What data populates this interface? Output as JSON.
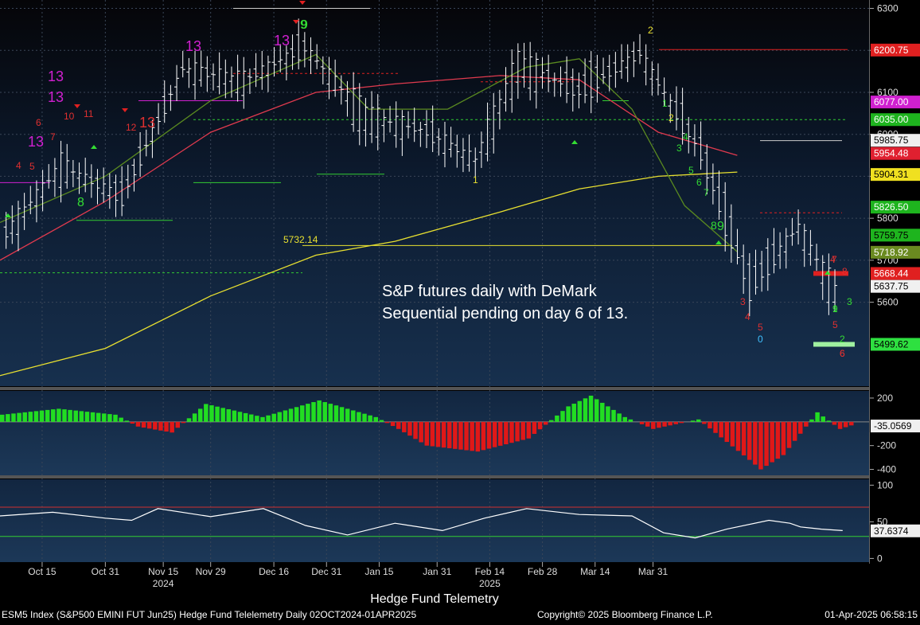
{
  "chart_data": {
    "type": "candlestick",
    "panels": {
      "price": {
        "ylim": [
          5400,
          6320
        ],
        "ticks": [
          {
            "value": 6300,
            "label": "6300"
          },
          {
            "value": 6200,
            "label": "6200"
          },
          {
            "value": 6100,
            "label": "6100"
          },
          {
            "value": 6000,
            "label": "6000"
          },
          {
            "value": 5900,
            "label": "5900"
          },
          {
            "value": 5800,
            "label": "5800"
          },
          {
            "value": 5700,
            "label": "5700"
          },
          {
            "value": 5600,
            "label": "5600"
          }
        ],
        "ohlc_sample": [
          {
            "x": 1,
            "o": 5755,
            "h": 5780,
            "l": 5740,
            "c": 5770
          },
          {
            "x": 10,
            "o": 5900,
            "h": 5950,
            "l": 5880,
            "c": 5940
          },
          {
            "x": 20,
            "o": 5870,
            "h": 5920,
            "l": 5830,
            "c": 5840
          },
          {
            "x": 30,
            "o": 6150,
            "h": 6185,
            "l": 6120,
            "c": 6160
          },
          {
            "x": 40,
            "o": 6110,
            "h": 6160,
            "l": 6080,
            "c": 6140
          },
          {
            "x": 50,
            "o": 6220,
            "h": 6240,
            "l": 6190,
            "c": 6200
          },
          {
            "x": 60,
            "o": 6000,
            "h": 6080,
            "l": 5950,
            "c": 6070
          },
          {
            "x": 70,
            "o": 6020,
            "h": 6060,
            "l": 5980,
            "c": 6000
          },
          {
            "x": 78,
            "o": 5920,
            "h": 5980,
            "l": 5860,
            "c": 5950
          },
          {
            "x": 85,
            "o": 6120,
            "h": 6220,
            "l": 6060,
            "c": 6200
          },
          {
            "x": 95,
            "o": 6140,
            "h": 6180,
            "l": 6060,
            "c": 6080
          },
          {
            "x": 105,
            "o": 6180,
            "h": 6220,
            "l": 6150,
            "c": 6200
          },
          {
            "x": 115,
            "o": 5990,
            "h": 6030,
            "l": 5920,
            "c": 5940
          },
          {
            "x": 123,
            "o": 5680,
            "h": 5800,
            "l": 5570,
            "c": 5610
          },
          {
            "x": 131,
            "o": 5760,
            "h": 5820,
            "l": 5710,
            "c": 5790
          },
          {
            "x": 137,
            "o": 5600,
            "h": 5690,
            "l": 5530,
            "c": 5640
          }
        ],
        "series": [
          {
            "name": "",
            "color": "#e8e030",
            "values": [
              [
                0,
                5425
              ],
              [
                20,
                5490
              ],
              [
                40,
                5615
              ],
              [
                60,
                5712
              ],
              [
                75,
                5745
              ],
              [
                95,
                5815
              ],
              [
                110,
                5870
              ],
              [
                125,
                5900
              ],
              [
                140,
                5910
              ]
            ]
          },
          {
            "name": "",
            "color": "#e03a4e",
            "values": [
              [
                0,
                5700
              ],
              [
                20,
                5840
              ],
              [
                40,
                6005
              ],
              [
                60,
                6100
              ],
              [
                75,
                6120
              ],
              [
                95,
                6140
              ],
              [
                110,
                6130
              ],
              [
                125,
                6005
              ],
              [
                140,
                5950
              ]
            ]
          },
          {
            "name": "",
            "color": "#5a8a20",
            "values": [
              [
                0,
                5790
              ],
              [
                20,
                5900
              ],
              [
                40,
                6080
              ],
              [
                60,
                6190
              ],
              [
                70,
                6060
              ],
              [
                85,
                6060
              ],
              [
                100,
                6160
              ],
              [
                110,
                6180
              ],
              [
                120,
                6060
              ],
              [
                130,
                5830
              ],
              [
                140,
                5720
              ]
            ]
          }
        ],
        "price_labels": [
          {
            "label": "6200.75",
            "value": 6200.75,
            "bg": "#e02020",
            "fg": "#ffffff"
          },
          {
            "label": "6077.00",
            "value": 6077.0,
            "bg": "#d020d0",
            "fg": "#ffffff"
          },
          {
            "label": "6035.00",
            "value": 6035.0,
            "bg": "#1eb41e",
            "fg": "#ffffff"
          },
          {
            "label": "5985.75",
            "value": 5985.75,
            "bg": "#f0f0f0",
            "fg": "#000000"
          },
          {
            "label": "5954.48",
            "value": 5954.48,
            "bg": "#e02030",
            "fg": "#ffffff"
          },
          {
            "label": "5904.31",
            "value": 5904.31,
            "bg": "#f0e020",
            "fg": "#000000"
          },
          {
            "label": "5826.50",
            "value": 5826.5,
            "bg": "#1eb41e",
            "fg": "#ffffff"
          },
          {
            "label": "5759.75",
            "value": 5759.75,
            "bg": "#1eb41e",
            "fg": "#000000"
          },
          {
            "label": "5718.92",
            "value": 5718.92,
            "bg": "#6a8a20",
            "fg": "#ffffff"
          },
          {
            "label": "5668.44",
            "value": 5668.44,
            "bg": "#e02020",
            "fg": "#ffffff"
          },
          {
            "label": "5637.75",
            "value": 5637.75,
            "bg": "#f0f0f0",
            "fg": "#000000"
          },
          {
            "label": "5499.62",
            "value": 5499.62,
            "bg": "#2ee040",
            "fg": "#000000"
          }
        ],
        "level_text": "5732.14",
        "annotation": [
          "S&P futures daily with DeMark",
          "Sequential pending on day 6 of 13."
        ],
        "demark_labels": [
          "4",
          "5",
          "6",
          "7",
          "8",
          "9",
          "9",
          "10",
          "11",
          "12",
          "13",
          "13",
          "13",
          "13",
          "13",
          "13",
          "1",
          "2",
          "3",
          "4",
          "5",
          "6",
          "7",
          "8",
          "9",
          "1",
          "2",
          "3",
          "4",
          "5",
          "6",
          "7",
          "8",
          "9",
          "0",
          "1",
          "2",
          "3",
          "4",
          "5",
          "6"
        ]
      },
      "macd": {
        "ylim": [
          -450,
          260
        ],
        "ticks": [
          {
            "value": 200,
            "label": "200"
          },
          {
            "value": -200,
            "label": "-200"
          },
          {
            "value": -400,
            "label": "-400"
          }
        ],
        "label": "-35.0569",
        "histogram": [
          [
            0,
            60
          ],
          [
            10,
            110
          ],
          [
            20,
            60
          ],
          [
            24,
            -40
          ],
          [
            30,
            -90
          ],
          [
            36,
            150
          ],
          [
            46,
            40
          ],
          [
            56,
            180
          ],
          [
            66,
            40
          ],
          [
            70,
            -60
          ],
          [
            75,
            -200
          ],
          [
            84,
            -250
          ],
          [
            93,
            -140
          ],
          [
            100,
            130
          ],
          [
            104,
            220
          ],
          [
            110,
            40
          ],
          [
            115,
            -60
          ],
          [
            123,
            20
          ],
          [
            132,
            -320
          ],
          [
            134,
            -400
          ],
          [
            138,
            -280
          ],
          [
            144,
            80
          ],
          [
            148,
            -60
          ],
          [
            150,
            -30
          ]
        ]
      },
      "rsi": {
        "ylim": [
          -5,
          108
        ],
        "ticks": [
          {
            "value": 100,
            "label": "100"
          },
          {
            "value": 50,
            "label": "50"
          },
          {
            "value": 0,
            "label": "0"
          }
        ],
        "upper": 70,
        "lower": 30,
        "label": "37.6374",
        "values": [
          [
            0,
            58
          ],
          [
            10,
            63
          ],
          [
            20,
            55
          ],
          [
            25,
            52
          ],
          [
            30,
            68
          ],
          [
            40,
            57
          ],
          [
            50,
            68
          ],
          [
            58,
            45
          ],
          [
            66,
            32
          ],
          [
            75,
            48
          ],
          [
            84,
            38
          ],
          [
            92,
            55
          ],
          [
            100,
            68
          ],
          [
            110,
            60
          ],
          [
            120,
            58
          ],
          [
            126,
            35
          ],
          [
            132,
            28
          ],
          [
            138,
            40
          ],
          [
            146,
            52
          ],
          [
            150,
            48
          ],
          [
            152,
            43
          ],
          [
            156,
            40
          ],
          [
            160,
            38
          ]
        ]
      }
    },
    "x_ticks": [
      {
        "label": "Oct 15",
        "pos": 8
      },
      {
        "label": "Oct 31",
        "pos": 20
      },
      {
        "label": "Nov 15",
        "pos": 31
      },
      {
        "label": "Nov 29",
        "pos": 40
      },
      {
        "label": "Dec 16",
        "pos": 52
      },
      {
        "label": "Dec 31",
        "pos": 62
      },
      {
        "label": "Jan 15",
        "pos": 72
      },
      {
        "label": "Jan 31",
        "pos": 83
      },
      {
        "label": "Feb 14",
        "pos": 93
      },
      {
        "label": "Feb 28",
        "pos": 103
      },
      {
        "label": "Mar 14",
        "pos": 113
      },
      {
        "label": "Mar 31",
        "pos": 124
      }
    ],
    "year_labels": [
      {
        "label": "2024",
        "pos": 31
      },
      {
        "label": "2025",
        "pos": 93
      }
    ]
  },
  "footer": {
    "title": "Hedge Fund Telemetry",
    "left": "ESM5 Index (S&P500 EMINI FUT  Jun25) Hedge Fund Telelemetry  Daily 02OCT2024-01APR2025",
    "center": "Copyright© 2025 Bloomberg Finance L.P.",
    "right": "01-Apr-2025 06:58:15"
  }
}
